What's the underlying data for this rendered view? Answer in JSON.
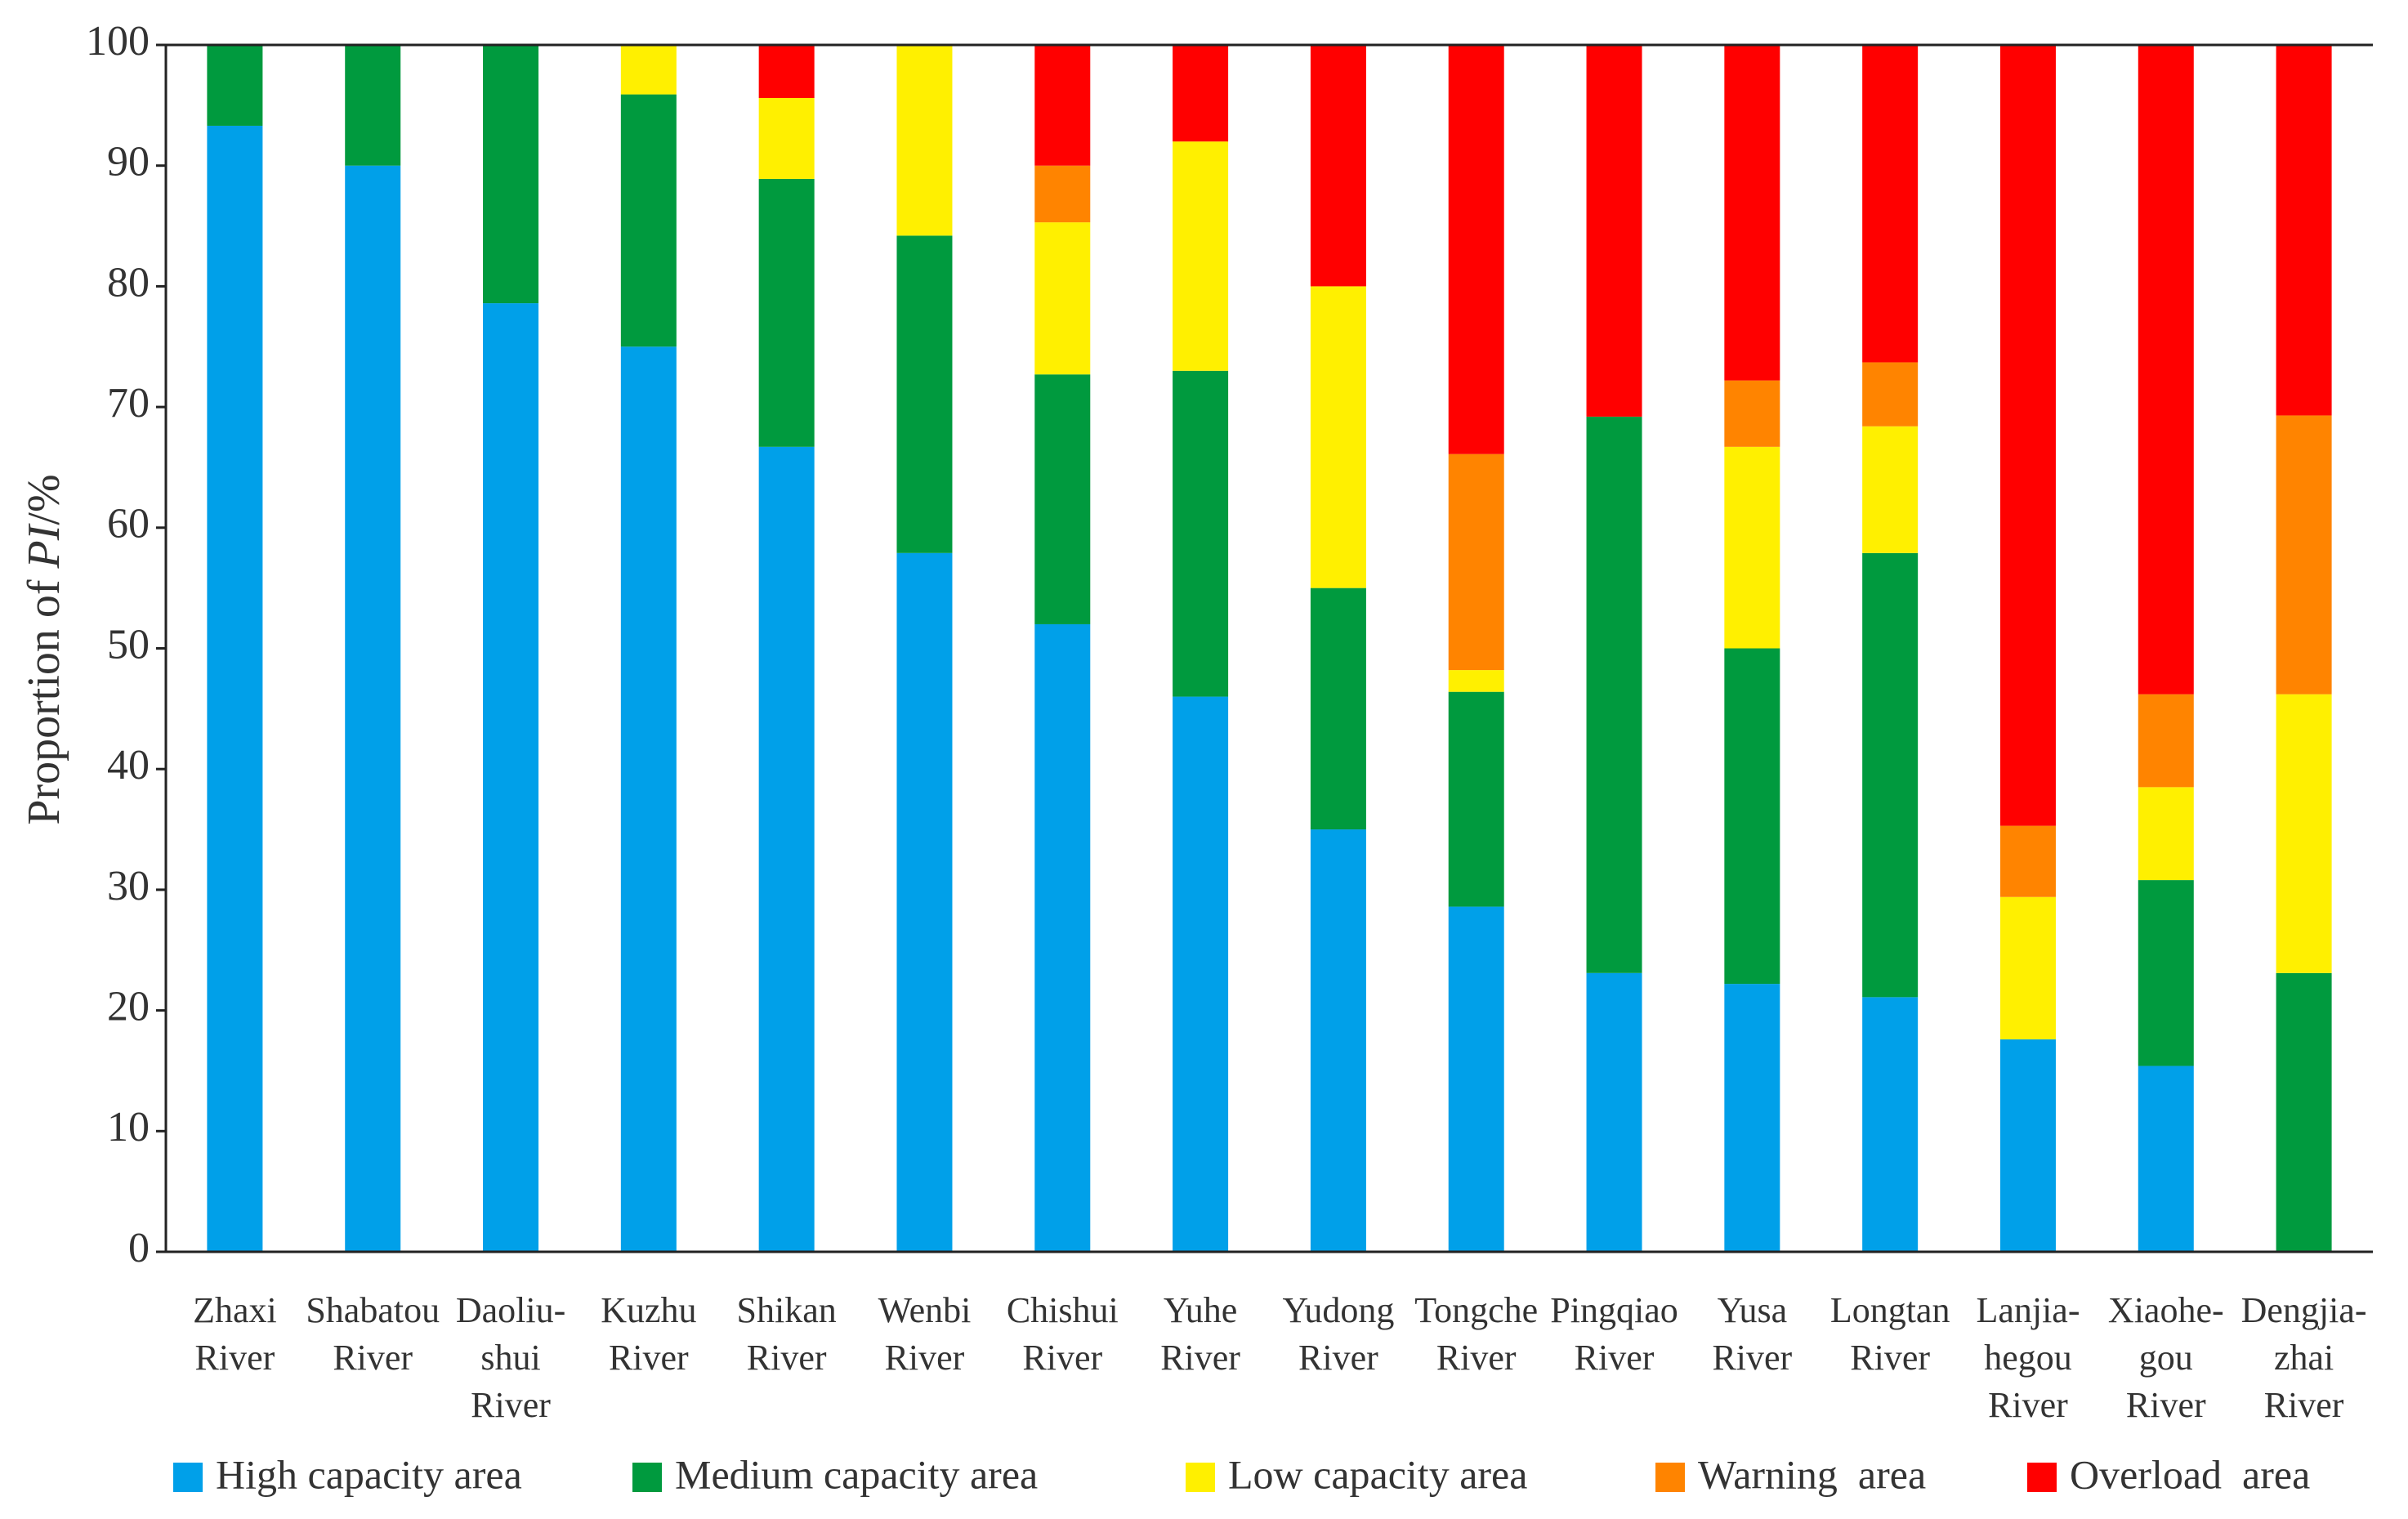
{
  "chart_data": {
    "type": "stacked_bar",
    "y_label": [
      "Proportion of ",
      "PI",
      "/%"
    ],
    "categories": [
      [
        "Zhaxi",
        "River"
      ],
      [
        "Shabatou",
        "River"
      ],
      [
        "Daoliu-",
        "shui",
        "River"
      ],
      [
        "Kuzhu",
        "River"
      ],
      [
        "Shikan",
        "River"
      ],
      [
        "Wenbi",
        "River"
      ],
      [
        "Chishui",
        "River"
      ],
      [
        "Yuhe",
        "River"
      ],
      [
        "Yudong",
        "River"
      ],
      [
        "Tongche",
        "River"
      ],
      [
        "Pingqiao",
        "River"
      ],
      [
        "Yusa",
        "River"
      ],
      [
        "Longtan",
        "River"
      ],
      [
        "Lanjia-",
        "hegou",
        "River"
      ],
      [
        "Xiaohe-",
        "gou",
        "River"
      ],
      [
        "Dengjia-",
        "zhai",
        "River"
      ]
    ],
    "series": [
      {
        "name": "High capacity area",
        "color": "#00a0e9",
        "values": [
          93.3,
          90,
          78.6,
          75,
          66.7,
          57.9,
          52,
          46,
          35,
          28.6,
          23.1,
          22.2,
          21.1,
          17.6,
          15.4,
          0
        ]
      },
      {
        "name": "Medium capacity area",
        "color": "#009a3e",
        "values": [
          6.7,
          10,
          21.4,
          20.9,
          22.2,
          26.3,
          20.7,
          27,
          20,
          17.8,
          46.1,
          27.8,
          36.8,
          0,
          15.4,
          23.1
        ]
      },
      {
        "name": "Low capacity area",
        "color": "#fff000",
        "values": [
          0,
          0,
          0,
          4.1,
          6.7,
          15.8,
          12.6,
          19,
          25,
          1.8,
          0,
          16.7,
          10.5,
          11.8,
          7.7,
          23.1
        ]
      },
      {
        "name": "Warning  area",
        "color": "#ff8400",
        "values": [
          0,
          0,
          0,
          0,
          0,
          0,
          4.7,
          0,
          0,
          17.9,
          0,
          5.5,
          5.3,
          5.9,
          7.7,
          23.1
        ]
      },
      {
        "name": "Overload  area",
        "color": "#ff0000",
        "values": [
          0,
          0,
          0,
          0,
          4.4,
          0,
          10,
          8,
          20,
          33.9,
          30.8,
          27.8,
          26.3,
          64.7,
          53.8,
          30.8
        ]
      }
    ],
    "ylim": [
      0,
      100
    ],
    "yticks": [
      0,
      10,
      20,
      30,
      40,
      50,
      60,
      70,
      80,
      90,
      100
    ],
    "grid": false,
    "legend": "bottom"
  }
}
